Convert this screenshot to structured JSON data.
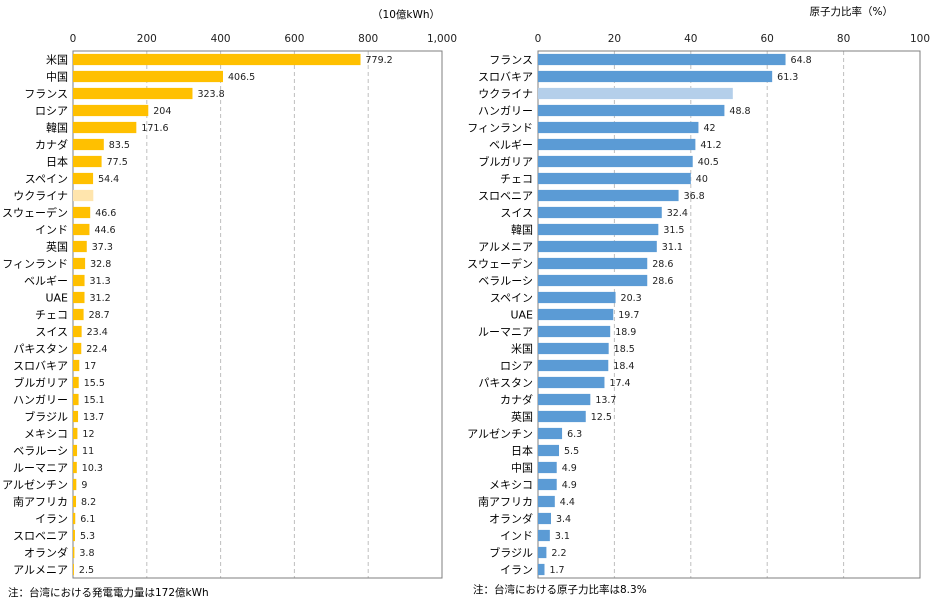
{
  "colors": {
    "left_bar": "#FFC000",
    "left_bar_light": "#FFE5AD",
    "right_bar": "#5B9BD5",
    "right_bar_light": "#B4CFEA",
    "grid": "#BFBFBF",
    "frame": "#7F7F7F"
  },
  "chart_data": [
    {
      "type": "bar",
      "orientation": "horizontal",
      "title": "",
      "unit_label": "（10億kWh）",
      "xlim": [
        0,
        1000
      ],
      "ticks": [
        "0",
        "200",
        "400",
        "600",
        "800",
        "1,000"
      ],
      "tick_values": [
        0,
        200,
        400,
        600,
        800,
        1000
      ],
      "grid": true,
      "categories": [
        "米国",
        "中国",
        "フランス",
        "ロシア",
        "韓国",
        "カナダ",
        "日本",
        "スペイン",
        "ウクライナ",
        "スウェーデン",
        "インド",
        "英国",
        "フィンランド",
        "ベルギー",
        "UAE",
        "チェコ",
        "スイス",
        "パキスタン",
        "スロバキア",
        "ブルガリア",
        "ハンガリー",
        "ブラジル",
        "メキシコ",
        "ベラルーシ",
        "ルーマニア",
        "アルゼンチン",
        "南アフリカ",
        "イラン",
        "スロベニア",
        "オランダ",
        "アルメニア"
      ],
      "values": [
        779.2,
        406.5,
        323.8,
        204,
        171.6,
        83.5,
        77.5,
        54.4,
        55,
        46.6,
        44.6,
        37.3,
        32.8,
        31.3,
        31.2,
        28.7,
        23.4,
        22.4,
        17,
        15.5,
        15.1,
        13.7,
        12,
        11,
        10.3,
        9,
        8.2,
        6.1,
        5.3,
        3.8,
        2.5
      ],
      "labels": [
        "779.2",
        "406.5",
        "323.8",
        "204",
        "171.6",
        "83.5",
        "77.5",
        "54.4",
        "",
        "46.6",
        "44.6",
        "37.3",
        "32.8",
        "31.3",
        "31.2",
        "28.7",
        "23.4",
        "22.4",
        "17",
        "15.5",
        "15.1",
        "13.7",
        "12",
        "11",
        "10.3",
        "9",
        "8.2",
        "6.1",
        "5.3",
        "3.8",
        "2.5"
      ],
      "highlight_light_index": 8,
      "note": "注：台湾における発電電力量は172億kWh"
    },
    {
      "type": "bar",
      "orientation": "horizontal",
      "title": "",
      "unit_label": "原子力比率（%）",
      "xlim": [
        0,
        100
      ],
      "ticks": [
        "0",
        "20",
        "40",
        "60",
        "80",
        "100"
      ],
      "tick_values": [
        0,
        20,
        40,
        60,
        80,
        100
      ],
      "grid": true,
      "categories": [
        "フランス",
        "スロバキア",
        "ウクライナ",
        "ハンガリー",
        "フィンランド",
        "ベルギー",
        "ブルガリア",
        "チェコ",
        "スロベニア",
        "スイス",
        "韓国",
        "アルメニア",
        "スウェーデン",
        "ベラルーシ",
        "スペイン",
        "UAE",
        "ルーマニア",
        "米国",
        "ロシア",
        "パキスタン",
        "カナダ",
        "英国",
        "アルゼンチン",
        "日本",
        "中国",
        "メキシコ",
        "南アフリカ",
        "オランダ",
        "インド",
        "ブラジル",
        "イラン"
      ],
      "values": [
        64.8,
        61.3,
        51,
        48.8,
        42,
        41.2,
        40.5,
        40,
        36.8,
        32.4,
        31.5,
        31.1,
        28.6,
        28.6,
        20.3,
        19.7,
        18.9,
        18.5,
        18.4,
        17.4,
        13.7,
        12.5,
        6.3,
        5.5,
        4.9,
        4.9,
        4.4,
        3.4,
        3.1,
        2.2,
        1.7
      ],
      "labels": [
        "64.8",
        "61.3",
        "",
        "48.8",
        "42",
        "41.2",
        "40.5",
        "40",
        "36.8",
        "32.4",
        "31.5",
        "31.1",
        "28.6",
        "28.6",
        "20.3",
        "19.7",
        "18.9",
        "18.5",
        "18.4",
        "17.4",
        "13.7",
        "12.5",
        "6.3",
        "5.5",
        "4.9",
        "4.9",
        "4.4",
        "3.4",
        "3.1",
        "2.2",
        "1.7"
      ],
      "highlight_light_index": 2,
      "note": "注：台湾における原子力比率は8.3%"
    }
  ]
}
